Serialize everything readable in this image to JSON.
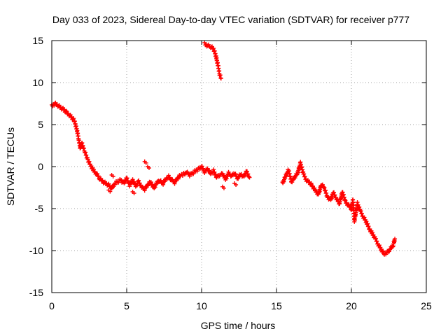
{
  "chart_data": {
    "type": "scatter",
    "title": "Day 033 of 2023, Sidereal Day-to-day VTEC variation (SDTVAR) for receiver p777",
    "xlabel": "GPS time / hours",
    "ylabel": "SDTVAR / TECUs",
    "xlim": [
      0,
      25
    ],
    "ylim": [
      -15,
      15
    ],
    "xticks": [
      0,
      5,
      10,
      15,
      20,
      25
    ],
    "yticks": [
      -15,
      -10,
      -5,
      0,
      5,
      10,
      15
    ],
    "grid": true,
    "marker": "+",
    "color": "#ff0000",
    "segments": [
      {
        "name": "main-trace-1",
        "points": [
          [
            0.0,
            7.2
          ],
          [
            0.2,
            7.5
          ],
          [
            0.4,
            7.3
          ],
          [
            0.6,
            7.0
          ],
          [
            0.8,
            6.8
          ],
          [
            1.0,
            6.4
          ],
          [
            1.2,
            6.1
          ],
          [
            1.5,
            5.5
          ],
          [
            1.7,
            4.2
          ],
          [
            1.8,
            3.2
          ],
          [
            1.9,
            2.2
          ],
          [
            2.0,
            2.8
          ],
          [
            2.2,
            1.8
          ],
          [
            2.4,
            0.8
          ],
          [
            2.6,
            0.1
          ],
          [
            2.8,
            -0.5
          ],
          [
            3.0,
            -0.9
          ],
          [
            3.2,
            -1.4
          ],
          [
            3.4,
            -1.8
          ],
          [
            3.6,
            -2.0
          ],
          [
            3.8,
            -2.2
          ],
          [
            4.0,
            -2.6
          ],
          [
            4.2,
            -2.0
          ],
          [
            4.4,
            -1.8
          ],
          [
            4.6,
            -1.6
          ],
          [
            4.8,
            -2.0
          ],
          [
            5.0,
            -1.4
          ],
          [
            5.2,
            -2.2
          ],
          [
            5.4,
            -1.6
          ],
          [
            5.6,
            -2.3
          ],
          [
            5.8,
            -1.8
          ],
          [
            6.0,
            -2.5
          ],
          [
            6.2,
            -2.7
          ],
          [
            6.4,
            -2.2
          ],
          [
            6.6,
            -1.8
          ],
          [
            6.8,
            -2.6
          ],
          [
            7.0,
            -2.0
          ],
          [
            7.2,
            -1.6
          ],
          [
            7.4,
            -2.1
          ],
          [
            7.6,
            -1.5
          ],
          [
            7.8,
            -1.2
          ],
          [
            8.0,
            -1.6
          ],
          [
            8.2,
            -1.9
          ],
          [
            8.4,
            -1.4
          ],
          [
            8.6,
            -1.0
          ],
          [
            8.8,
            -0.9
          ],
          [
            9.0,
            -0.7
          ],
          [
            9.2,
            -1.0
          ],
          [
            9.4,
            -0.8
          ],
          [
            9.6,
            -0.5
          ],
          [
            9.8,
            -0.3
          ],
          [
            10.0,
            0.0
          ],
          [
            10.2,
            -0.6
          ],
          [
            10.4,
            -0.3
          ],
          [
            10.6,
            -0.8
          ],
          [
            10.8,
            -0.5
          ],
          [
            11.0,
            -1.3
          ],
          [
            11.2,
            -1.0
          ],
          [
            11.4,
            -0.9
          ],
          [
            11.6,
            -1.5
          ],
          [
            11.8,
            -0.8
          ],
          [
            12.0,
            -1.1
          ],
          [
            12.2,
            -0.8
          ],
          [
            12.4,
            -1.4
          ],
          [
            12.6,
            -0.9
          ],
          [
            12.8,
            -1.2
          ],
          [
            13.0,
            -0.6
          ],
          [
            13.2,
            -1.3
          ]
        ]
      },
      {
        "name": "outlier-cluster",
        "points": [
          [
            6.2,
            0.6
          ],
          [
            6.4,
            0.0
          ],
          [
            4.0,
            -1.0
          ],
          [
            3.8,
            -2.8
          ],
          [
            5.4,
            -3.0
          ],
          [
            11.4,
            -2.4
          ],
          [
            12.2,
            -2.0
          ]
        ]
      },
      {
        "name": "high-arc",
        "points": [
          [
            10.2,
            14.6
          ],
          [
            10.4,
            14.4
          ],
          [
            10.6,
            14.3
          ],
          [
            10.8,
            14.0
          ],
          [
            10.9,
            13.5
          ],
          [
            11.0,
            12.8
          ],
          [
            11.1,
            12.0
          ],
          [
            11.2,
            11.0
          ],
          [
            11.3,
            10.5
          ]
        ]
      },
      {
        "name": "main-trace-2",
        "points": [
          [
            15.4,
            -2.0
          ],
          [
            15.6,
            -1.2
          ],
          [
            15.8,
            -0.4
          ],
          [
            16.0,
            -1.8
          ],
          [
            16.4,
            -0.8
          ],
          [
            16.6,
            0.4
          ],
          [
            16.8,
            -0.9
          ],
          [
            17.0,
            -1.6
          ],
          [
            17.2,
            -1.9
          ],
          [
            17.4,
            -2.3
          ],
          [
            17.6,
            -2.9
          ],
          [
            17.8,
            -3.3
          ],
          [
            18.0,
            -2.1
          ],
          [
            18.2,
            -2.6
          ],
          [
            18.4,
            -3.6
          ],
          [
            18.6,
            -4.0
          ],
          [
            18.8,
            -3.1
          ],
          [
            19.0,
            -3.8
          ],
          [
            19.2,
            -4.4
          ],
          [
            19.4,
            -3.0
          ],
          [
            19.6,
            -4.2
          ],
          [
            19.8,
            -4.6
          ],
          [
            20.0,
            -5.0
          ],
          [
            20.1,
            -4.0
          ],
          [
            20.2,
            -6.5
          ],
          [
            20.4,
            -4.4
          ],
          [
            20.6,
            -5.3
          ],
          [
            20.8,
            -6.0
          ],
          [
            21.0,
            -6.6
          ],
          [
            21.2,
            -7.4
          ],
          [
            21.4,
            -8.0
          ],
          [
            21.6,
            -8.6
          ],
          [
            21.8,
            -9.3
          ],
          [
            22.0,
            -9.9
          ],
          [
            22.2,
            -10.4
          ],
          [
            22.4,
            -10.2
          ],
          [
            22.6,
            -9.8
          ],
          [
            22.8,
            -9.3
          ],
          [
            22.9,
            -8.6
          ]
        ]
      }
    ]
  }
}
